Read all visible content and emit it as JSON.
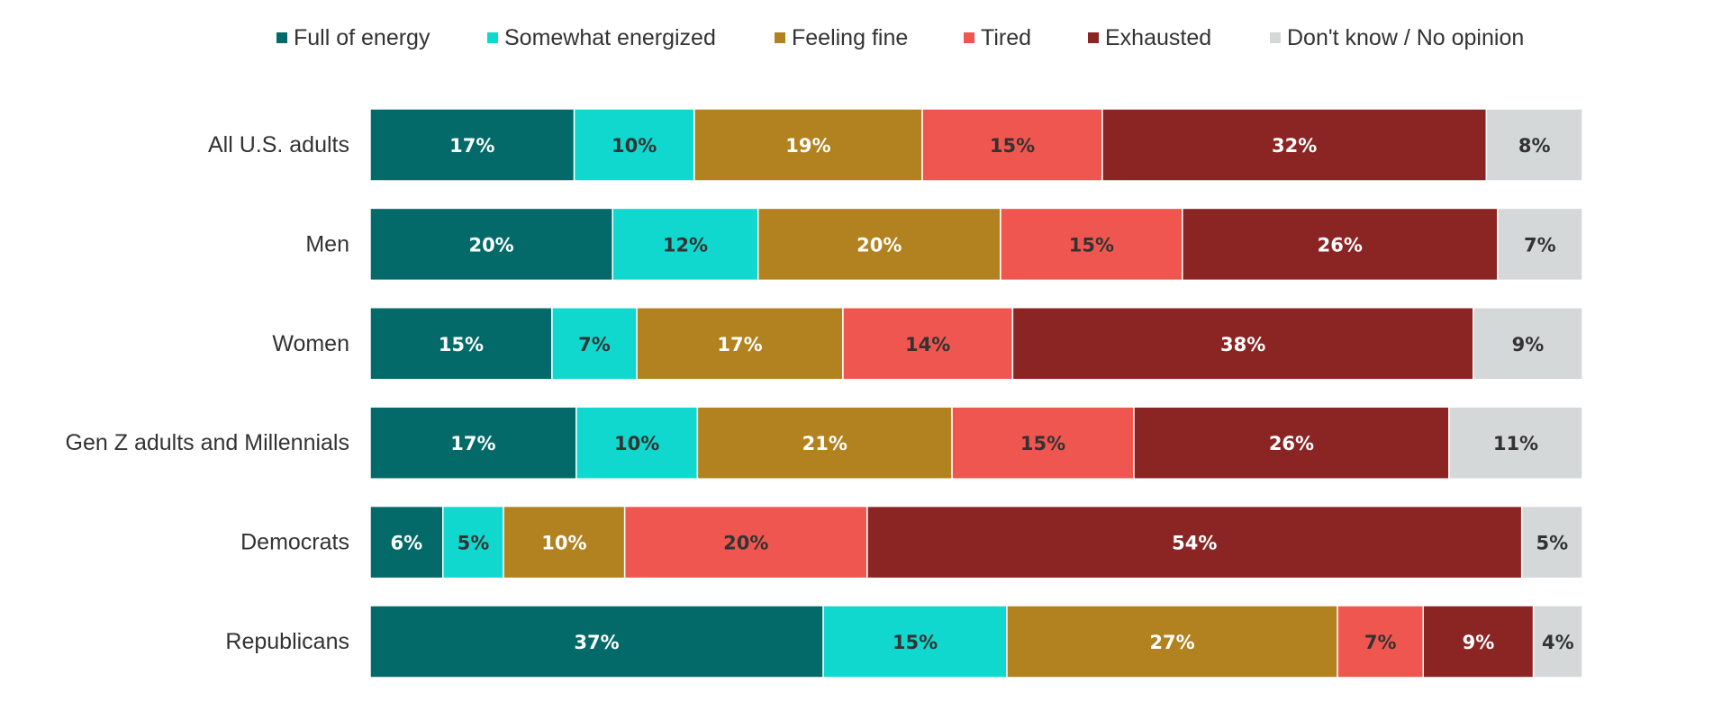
{
  "chart_data": {
    "type": "bar",
    "orientation": "horizontal",
    "stacked": true,
    "legend_position": "top",
    "grid": false,
    "categories": [
      "All U.S. adults",
      "Men",
      "Women",
      "Gen Z adults and Millennials",
      "Democrats",
      "Republicans"
    ],
    "series": [
      {
        "name": "Full of energy",
        "color": "#036a69",
        "label_color": "#ffffff",
        "values": [
          17,
          20,
          15,
          17,
          6,
          37
        ]
      },
      {
        "name": "Somewhat energized",
        "color": "#10d8cf",
        "label_color": "#333333",
        "values": [
          10,
          12,
          7,
          10,
          5,
          15
        ]
      },
      {
        "name": "Feeling fine",
        "color": "#b1821f",
        "label_color": "#ffffff",
        "values": [
          19,
          20,
          17,
          21,
          10,
          27
        ]
      },
      {
        "name": "Tired",
        "color": "#f05650",
        "label_color": "#333333",
        "values": [
          15,
          15,
          14,
          15,
          20,
          7
        ]
      },
      {
        "name": "Exhausted",
        "color": "#8a2524",
        "label_color": "#ffffff",
        "values": [
          32,
          26,
          38,
          26,
          54,
          9
        ]
      },
      {
        "name": "Don't know / No opinion",
        "color": "#d5d8d8",
        "label_color": "#333333",
        "values": [
          8,
          7,
          9,
          11,
          5,
          4
        ]
      }
    ],
    "value_suffix": "%"
  }
}
